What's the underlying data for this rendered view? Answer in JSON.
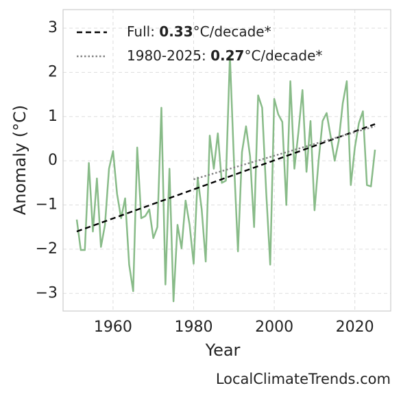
{
  "chart_data": {
    "type": "line",
    "xlabel": "Year",
    "ylabel": "Anomaly (°C)",
    "x": [
      1951,
      1952,
      1953,
      1954,
      1955,
      1956,
      1957,
      1958,
      1959,
      1960,
      1961,
      1962,
      1963,
      1964,
      1965,
      1966,
      1967,
      1968,
      1969,
      1970,
      1971,
      1972,
      1973,
      1974,
      1975,
      1976,
      1977,
      1978,
      1979,
      1980,
      1981,
      1982,
      1983,
      1984,
      1985,
      1986,
      1987,
      1988,
      1989,
      1990,
      1991,
      1992,
      1993,
      1994,
      1995,
      1996,
      1997,
      1998,
      1999,
      2000,
      2001,
      2002,
      2003,
      2004,
      2005,
      2006,
      2007,
      2008,
      2009,
      2010,
      2011,
      2012,
      2013,
      2014,
      2015,
      2016,
      2017,
      2018,
      2019,
      2020,
      2021,
      2022,
      2023,
      2024,
      2025
    ],
    "values": [
      -1.33,
      -2.02,
      -2.02,
      -0.05,
      -1.6,
      -0.4,
      -1.95,
      -1.45,
      -0.18,
      0.22,
      -0.75,
      -1.3,
      -0.85,
      -2.35,
      -2.95,
      0.3,
      -1.3,
      -1.25,
      -1.1,
      -1.75,
      -1.5,
      1.2,
      -2.8,
      -0.18,
      -3.18,
      -1.45,
      -1.98,
      -0.9,
      -1.45,
      -2.33,
      -0.38,
      -1.1,
      -2.28,
      0.57,
      -0.18,
      0.62,
      -0.5,
      -0.45,
      2.38,
      0.0,
      -2.05,
      0.2,
      0.78,
      0.1,
      -1.5,
      1.48,
      1.2,
      -0.7,
      -2.35,
      1.4,
      1.05,
      0.88,
      -1.0,
      1.8,
      -0.18,
      0.65,
      1.6,
      -0.25,
      0.9,
      -1.12,
      0.0,
      0.9,
      1.08,
      0.55,
      0.0,
      0.45,
      1.3,
      1.8,
      -0.55,
      0.3,
      0.85,
      1.12,
      -0.55,
      -0.58,
      0.25
    ],
    "color": "#88bb88",
    "trends": [
      {
        "legend": {
          "prefix": "Full: ",
          "value": "0.33",
          "suffix": "°C/decade*"
        },
        "color": "#000000",
        "dash": "dashed",
        "x": [
          1951,
          2025
        ],
        "values": [
          -1.6,
          0.83
        ]
      },
      {
        "legend": {
          "prefix": "1980-2025: ",
          "value": "0.27",
          "suffix": "°C/decade*"
        },
        "color": "#808080",
        "dash": "dotted",
        "x": [
          1980,
          2025
        ],
        "values": [
          -0.42,
          0.78
        ]
      }
    ],
    "xlim": [
      1947.6,
      2028.9
    ],
    "xticks": [
      1960,
      1980,
      2000,
      2020
    ],
    "ylim": [
      -3.4,
      3.42
    ],
    "yticks": [
      {
        "value": -3,
        "label": "−3"
      },
      {
        "value": -2,
        "label": "−2"
      },
      {
        "value": -1,
        "label": "−1"
      },
      0,
      1,
      2,
      3
    ],
    "grid": true,
    "legend_position": "upper left",
    "watermark": "LocalClimateTrends.com"
  }
}
